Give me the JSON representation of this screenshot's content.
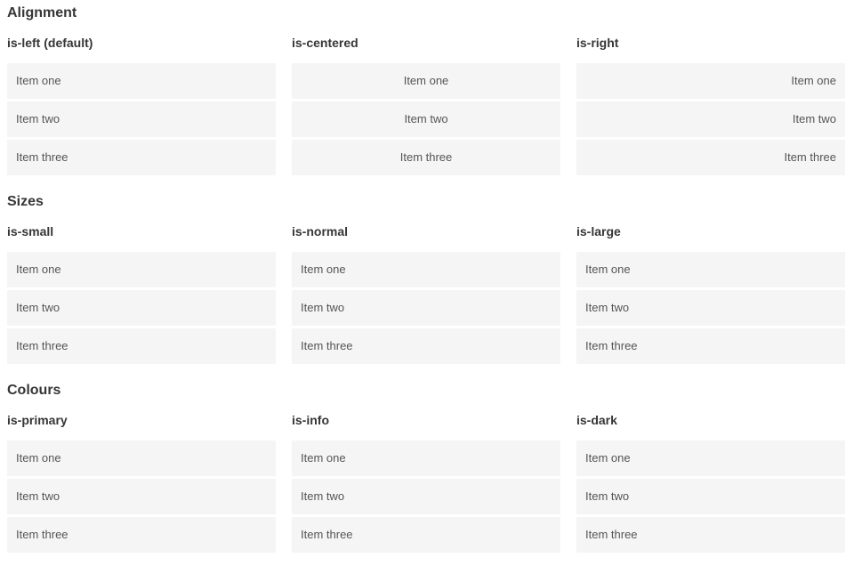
{
  "sections": [
    {
      "title": "Alignment",
      "columns": [
        {
          "heading": "is-left (default)",
          "items": [
            "Item one",
            "Item two",
            "Item three"
          ]
        },
        {
          "heading": "is-centered",
          "items": [
            "Item one",
            "Item two",
            "Item three"
          ]
        },
        {
          "heading": "is-right",
          "items": [
            "Item one",
            "Item two",
            "Item three"
          ]
        }
      ]
    },
    {
      "title": "Sizes",
      "columns": [
        {
          "heading": "is-small",
          "items": [
            "Item one",
            "Item two",
            "Item three"
          ]
        },
        {
          "heading": "is-normal",
          "items": [
            "Item one",
            "Item two",
            "Item three"
          ]
        },
        {
          "heading": "is-large",
          "items": [
            "Item one",
            "Item two",
            "Item three"
          ]
        }
      ]
    },
    {
      "title": "Colours",
      "columns": [
        {
          "heading": "is-primary",
          "items": [
            "Item one",
            "Item two",
            "Item three"
          ]
        },
        {
          "heading": "is-info",
          "items": [
            "Item one",
            "Item two",
            "Item three"
          ]
        },
        {
          "heading": "is-dark",
          "items": [
            "Item one",
            "Item two",
            "Item three"
          ]
        }
      ]
    }
  ],
  "colors": {
    "primary": "#00d1b2",
    "info": "#3298dc",
    "dark": "#363636",
    "item_background": "#f5f5f5",
    "item_text": "#555555",
    "heading_text": "#363636",
    "colored_item_text": "#ffffff"
  }
}
